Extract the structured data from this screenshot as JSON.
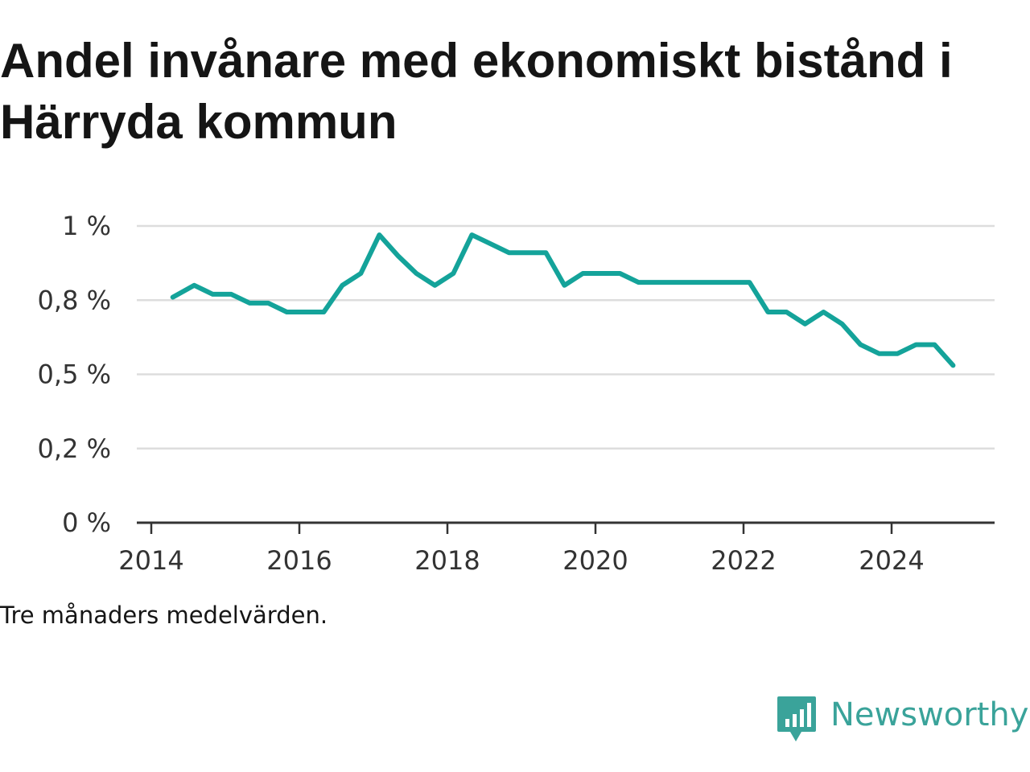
{
  "title": "Andel invånare med ekonomiskt bistånd i Härryda kommun",
  "caption": "Tre månaders medelvärden.",
  "brand": {
    "name": "Newsworthy",
    "logo_icon": "bar-chart-speech-bubble-icon"
  },
  "colors": {
    "line": "#14a39a",
    "grid": "#dddddd",
    "axis": "#333333",
    "brand": "#3aa39a"
  },
  "chart_data": {
    "type": "line",
    "title": "Andel invånare med ekonomiskt bistånd i Härryda kommun",
    "xlabel": "",
    "ylabel": "",
    "xlim": [
      2014,
      2025.4
    ],
    "ylim": [
      0,
      1.0
    ],
    "x_ticks": [
      {
        "value": 2014,
        "label": "2014"
      },
      {
        "value": 2016,
        "label": "2016"
      },
      {
        "value": 2018,
        "label": "2018"
      },
      {
        "value": 2020,
        "label": "2020"
      },
      {
        "value": 2022,
        "label": "2022"
      },
      {
        "value": 2024,
        "label": "2024"
      }
    ],
    "y_ticks": [
      {
        "value": 0,
        "label": "0 %"
      },
      {
        "value": 0.25,
        "label": "0,2 %"
      },
      {
        "value": 0.5,
        "label": "0,5 %"
      },
      {
        "value": 0.75,
        "label": "0,8 %"
      },
      {
        "value": 1.0,
        "label": "1 %"
      }
    ],
    "grid": true,
    "legend": "none",
    "series": [
      {
        "x": [
          2014.29,
          2014.58,
          2014.83,
          2015.08,
          2015.33,
          2015.58,
          2015.83,
          2016.08,
          2016.33,
          2016.58,
          2016.83,
          2017.08,
          2017.33,
          2017.58,
          2017.83,
          2018.08,
          2018.33,
          2018.58,
          2018.83,
          2019.08,
          2019.33,
          2019.58,
          2019.83,
          2020.08,
          2020.33,
          2020.58,
          2020.83,
          2021.08,
          2021.33,
          2021.58,
          2021.83,
          2022.08,
          2022.33,
          2022.58,
          2022.83,
          2023.08,
          2023.33,
          2023.58,
          2023.83,
          2024.08,
          2024.33,
          2024.58,
          2024.83
        ],
        "values": [
          0.76,
          0.8,
          0.77,
          0.77,
          0.74,
          0.74,
          0.71,
          0.71,
          0.71,
          0.8,
          0.84,
          0.97,
          0.9,
          0.84,
          0.8,
          0.84,
          0.97,
          0.94,
          0.91,
          0.91,
          0.91,
          0.8,
          0.84,
          0.84,
          0.84,
          0.81,
          0.81,
          0.81,
          0.81,
          0.81,
          0.81,
          0.81,
          0.71,
          0.71,
          0.67,
          0.71,
          0.67,
          0.6,
          0.57,
          0.57,
          0.6,
          0.6,
          0.53
        ]
      }
    ]
  }
}
